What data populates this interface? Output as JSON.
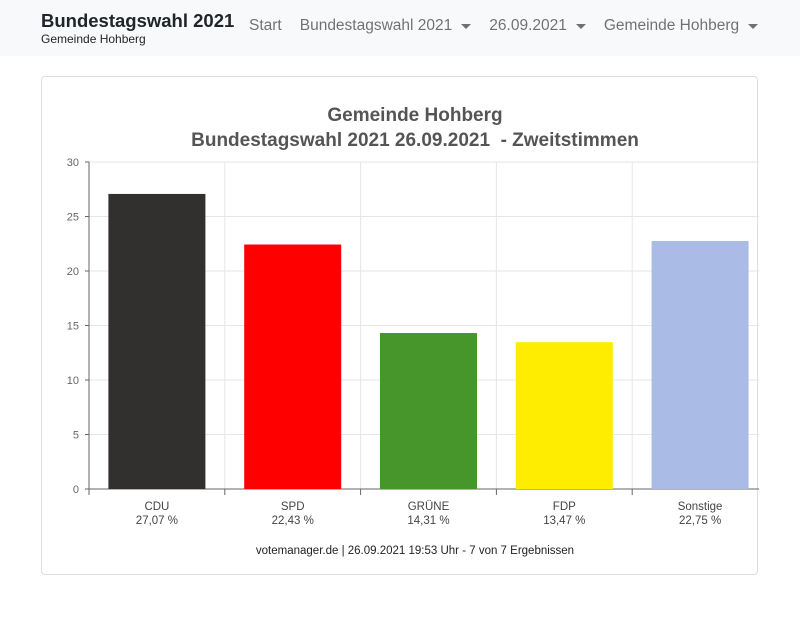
{
  "navbar": {
    "brand_title": "Bundestagswahl 2021",
    "brand_subtitle": "Gemeinde Hohberg",
    "items": [
      {
        "label": "Start",
        "dropdown": false
      },
      {
        "label": "Bundestagswahl 2021",
        "dropdown": true
      },
      {
        "label": "26.09.2021",
        "dropdown": true
      },
      {
        "label": "Gemeinde Hohberg",
        "dropdown": true
      }
    ]
  },
  "chart_data": {
    "type": "bar",
    "title_line1": "Gemeinde Hohberg",
    "title_line2": "Bundestagswahl 2021 26.09.2021  - Zweitstimmen",
    "categories": [
      "CDU",
      "SPD",
      "GRÜNE",
      "FDP",
      "Sonstige"
    ],
    "values": [
      27.07,
      22.43,
      14.31,
      13.47,
      22.75
    ],
    "value_labels": [
      "27,07 %",
      "22,43 %",
      "14,31 %",
      "13,47 %",
      "22,75 %"
    ],
    "colors": [
      "#32302e",
      "#ff0000",
      "#46962b",
      "#ffed00",
      "#aabce5"
    ],
    "ylim": [
      0,
      30
    ],
    "yticks": [
      0,
      5,
      10,
      15,
      20,
      25,
      30
    ],
    "grid": true,
    "footer": "votemanager.de | 26.09.2021 19:53 Uhr - 7 von 7 Ergebnissen"
  }
}
